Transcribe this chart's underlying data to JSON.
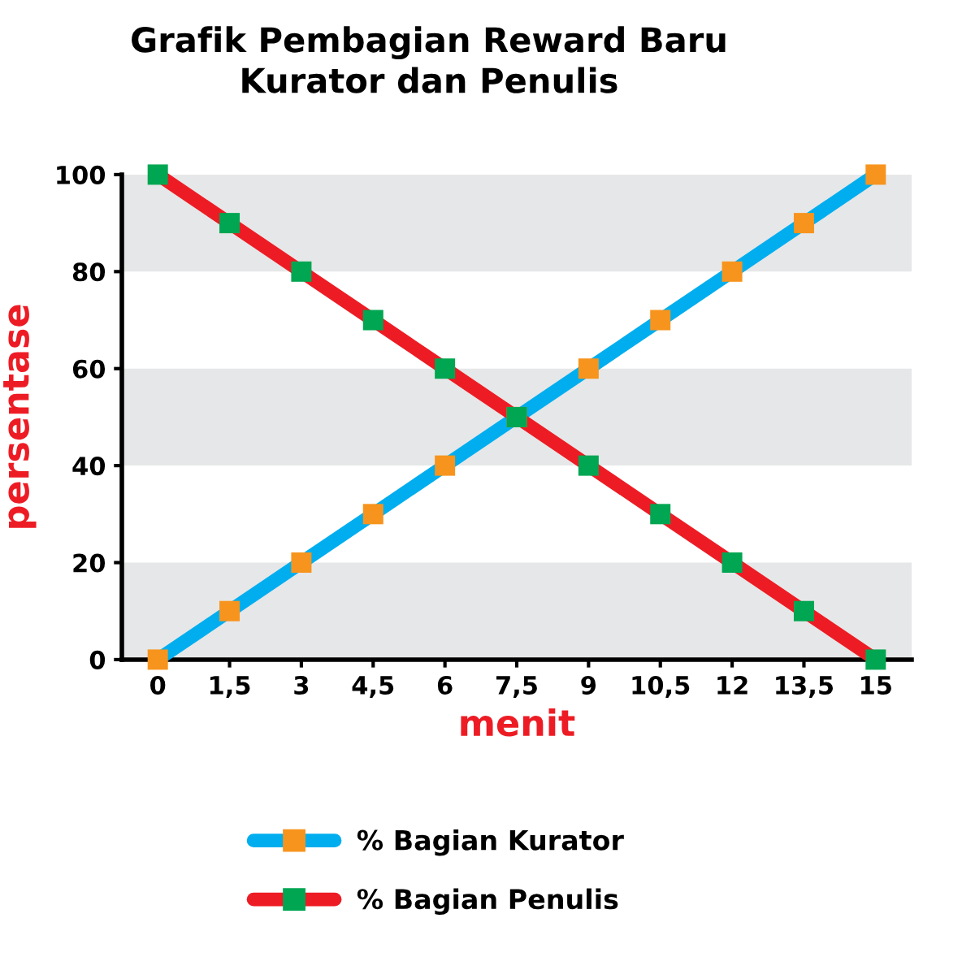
{
  "chart_data": {
    "type": "line",
    "title": "Grafik Pembagian Reward Baru\nKurator dan Penulis",
    "xlabel": "menit",
    "ylabel": "persentase",
    "x": [
      0,
      1.5,
      3,
      4.5,
      6,
      7.5,
      9,
      10.5,
      12,
      13.5,
      15
    ],
    "series": [
      {
        "name": "% Bagian Kurator",
        "color": "#00aeef",
        "colors": [
          "#f7941d",
          "#f7941d",
          "#f7941d",
          "#f7941d",
          "#f7941d",
          "#f7941d",
          "#f7941d",
          "#f7941d",
          "#f7941d",
          "#f7941d",
          "#f7941d"
        ],
        "values": [
          0,
          10,
          20,
          30,
          40,
          50,
          60,
          70,
          80,
          90,
          100
        ]
      },
      {
        "name": "% Bagian Penulis",
        "color": "#ed1c24",
        "colors": [
          "#00a651",
          "#00a651",
          "#00a651",
          "#00a651",
          "#00a651",
          "#00a651",
          "#00a651",
          "#00a651",
          "#00a651",
          "#00a651",
          "#00a651"
        ],
        "values": [
          100,
          90,
          80,
          70,
          60,
          50,
          40,
          30,
          20,
          10,
          0
        ]
      }
    ],
    "xlim": [
      -0.75,
      15.75
    ],
    "ylim": [
      0,
      100
    ],
    "xticks": [
      0,
      {
        "value": 1.5,
        "label": "1,5"
      },
      3,
      {
        "value": 4.5,
        "label": "4,5"
      },
      6,
      {
        "value": 7.5,
        "label": "7,5"
      },
      9,
      {
        "value": 10.5,
        "label": "10,5"
      },
      12,
      {
        "value": 13.5,
        "label": "13,5"
      },
      15
    ],
    "yticks": [
      0,
      20,
      40,
      60,
      80,
      100
    ],
    "bands": [
      {
        "axis": "y",
        "from": 0,
        "to": 20,
        "color": "#e6e7e8"
      },
      {
        "axis": "y",
        "from": 40,
        "to": 60,
        "color": "#e6e7e8"
      },
      {
        "axis": "y",
        "from": 80,
        "to": 100,
        "color": "#e6e7e8"
      }
    ],
    "grid": false,
    "legend": "bottom",
    "marker": "square",
    "line_style": "solid"
  }
}
